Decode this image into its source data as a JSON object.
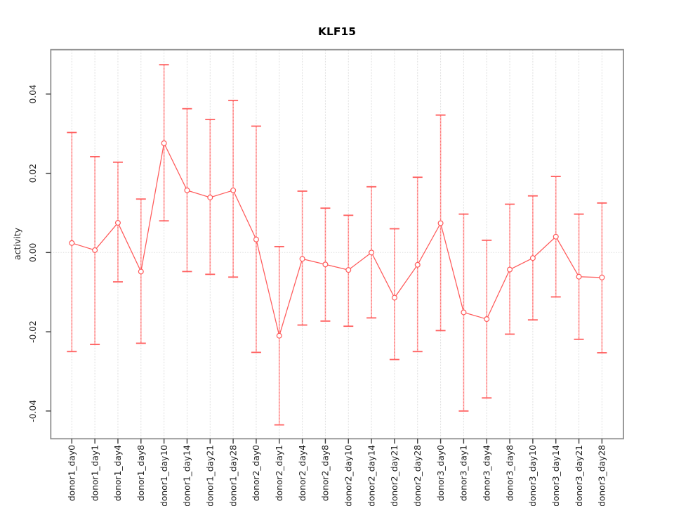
{
  "window": {
    "background": "#ffffff"
  },
  "chart_data": {
    "type": "scatter",
    "subtype": "points-with-error-bars-connected-by-line",
    "title": "KLF15",
    "xlabel": "",
    "ylabel": "activity",
    "legend_position": "none",
    "grid": "vertical dotted gridline at each category; dotted horizontal line at y=0",
    "ylim": [
      -0.047,
      0.0512
    ],
    "yticks": [
      0.04,
      0.02,
      0.0,
      -0.02,
      -0.04
    ],
    "ytick_labels": [
      "0.04",
      "0.02",
      "0.00",
      "-0.02",
      "-0.04"
    ],
    "categories": [
      "donor1_day0",
      "donor1_day1",
      "donor1_day4",
      "donor1_day8",
      "donor1_day10",
      "donor1_day14",
      "donor1_day21",
      "donor1_day28",
      "donor2_day0",
      "donor2_day1",
      "donor2_day4",
      "donor2_day8",
      "donor2_day10",
      "donor2_day14",
      "donor2_day21",
      "donor2_day28",
      "donor3_day0",
      "donor3_day1",
      "donor3_day4",
      "donor3_day8",
      "donor3_day10",
      "donor3_day14",
      "donor3_day21",
      "donor3_day28"
    ],
    "series": [
      {
        "name": "activity",
        "values": [
          0.0024,
          0.0006,
          0.0075,
          -0.0048,
          0.0276,
          0.0157,
          0.0139,
          0.0157,
          0.0033,
          -0.021,
          -0.0016,
          -0.003,
          -0.0044,
          0.0,
          -0.0114,
          -0.0031,
          0.0074,
          -0.0151,
          -0.0168,
          -0.0043,
          -0.0014,
          0.004,
          -0.0061,
          -0.0063
        ],
        "error_high": [
          0.0303,
          0.0242,
          0.0228,
          0.0135,
          0.0474,
          0.0363,
          0.0336,
          0.0384,
          0.0319,
          0.0015,
          0.0155,
          0.0112,
          0.0094,
          0.0166,
          0.006,
          0.019,
          0.0347,
          0.0097,
          0.0031,
          0.0122,
          0.0143,
          0.0192,
          0.0097,
          0.0125
        ],
        "error_low": [
          -0.025,
          -0.0232,
          -0.0074,
          -0.0229,
          0.008,
          -0.0048,
          -0.0055,
          -0.0062,
          -0.0252,
          -0.0435,
          -0.0183,
          -0.0173,
          -0.0186,
          -0.0165,
          -0.027,
          -0.025,
          -0.0197,
          -0.04,
          -0.0367,
          -0.0206,
          -0.017,
          -0.0112,
          -0.0219,
          -0.0253
        ]
      }
    ],
    "colors": {
      "line": "#ff5a5a",
      "point_stroke": "#ff5a5a",
      "point_fill": "#ffffff",
      "error_bar_light": "#ffb1b1",
      "error_bar_dash": "#ff6f6f",
      "error_cap": "#ff6060",
      "gridline": "#dedede",
      "zero_line": "#e6e6e6",
      "plot_border": "#8f8f8f",
      "tick": "#3c3c3c",
      "text": "#1f1f1f"
    }
  }
}
